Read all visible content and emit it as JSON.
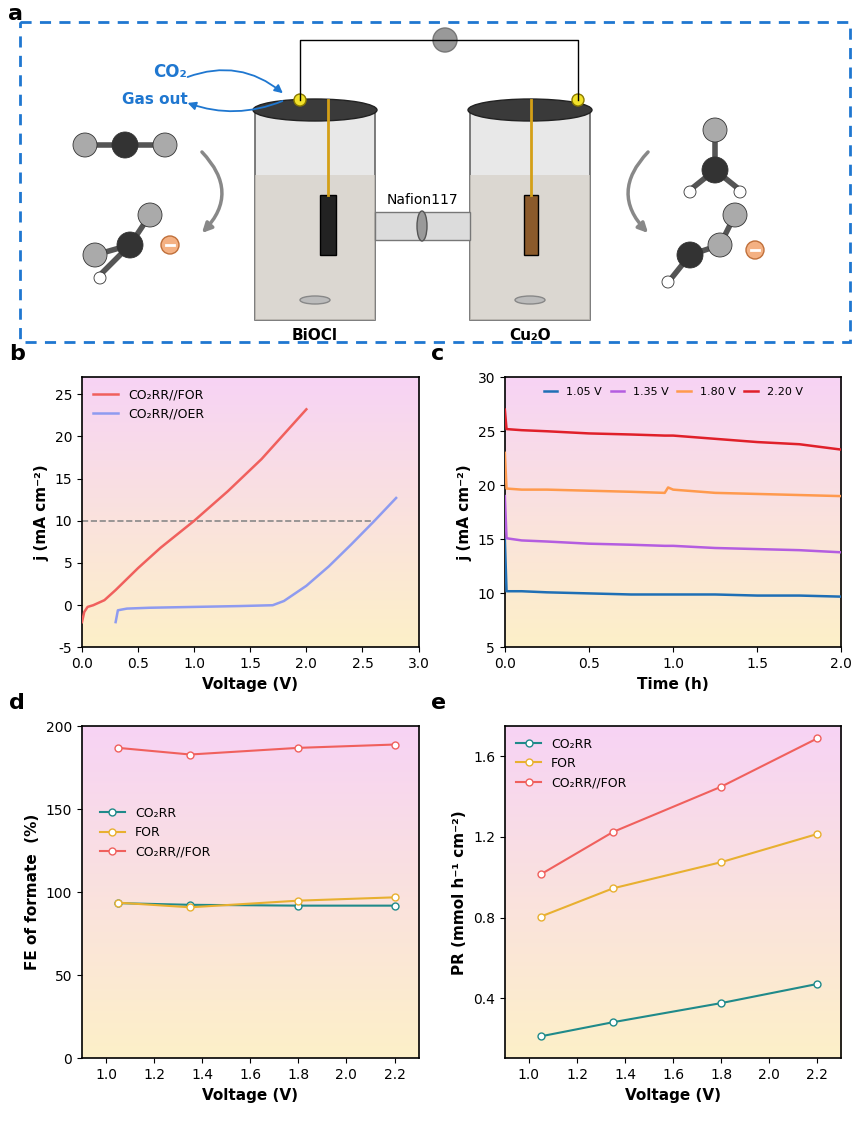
{
  "diagram": {
    "panel": "a",
    "gas_in": "CO₂",
    "gas_out": "Gas out",
    "membrane": "Nafion117",
    "cathode": "BiOCl",
    "anode": "Cu₂O"
  },
  "chart_data": [
    {
      "panel": "b",
      "type": "line",
      "x_label": "Voltage (V)",
      "y_label": "j (mA cm⁻²)",
      "xlim": [
        0,
        3
      ],
      "ylim": [
        -5,
        27
      ],
      "xticks": [
        {
          "value": 0,
          "label": "0.0"
        },
        {
          "value": 0.5,
          "label": "0.5"
        },
        {
          "value": 1,
          "label": "1.0"
        },
        {
          "value": 1.5,
          "label": "1.5"
        },
        {
          "value": 2,
          "label": "2.0"
        },
        {
          "value": 2.5,
          "label": "2.5"
        },
        {
          "value": 3,
          "label": "3.0"
        }
      ],
      "yticks": [
        -5,
        0,
        5,
        10,
        15,
        20,
        25
      ],
      "legend": "upper left",
      "reference_line": {
        "y": 10,
        "x": [
          0,
          2.6
        ],
        "color": "#888888",
        "line_style": "dashed"
      },
      "series": [
        {
          "name": "CO₂RR//FOR",
          "color": "#f0605d",
          "x": [
            0,
            0.02,
            0.05,
            0.1,
            0.2,
            0.3,
            0.5,
            0.7,
            1.0,
            1.3,
            1.6,
            2.0
          ],
          "values": [
            -2,
            -0.8,
            -0.2,
            0,
            0.6,
            1.8,
            4.4,
            6.8,
            10,
            13.5,
            17.3,
            23.2
          ]
        },
        {
          "name": "CO₂RR//OER",
          "color": "#8e9bf0",
          "x": [
            0.3,
            0.32,
            0.4,
            0.6,
            1.0,
            1.4,
            1.7,
            1.8,
            2.0,
            2.2,
            2.4,
            2.6,
            2.8
          ],
          "values": [
            -2,
            -0.6,
            -0.4,
            -0.3,
            -0.2,
            -0.1,
            0,
            0.5,
            2.3,
            4.6,
            7.2,
            9.9,
            12.7
          ]
        }
      ]
    },
    {
      "panel": "c",
      "type": "line",
      "x_label": "Time (h)",
      "y_label": "j (mA cm⁻²)",
      "xlim": [
        0,
        2
      ],
      "ylim": [
        5,
        30
      ],
      "xticks": [
        {
          "value": 0,
          "label": "0.0"
        },
        {
          "value": 0.5,
          "label": "0.5"
        },
        {
          "value": 1,
          "label": "1.0"
        },
        {
          "value": 1.5,
          "label": "1.5"
        },
        {
          "value": 2,
          "label": "2.0"
        }
      ],
      "yticks": [
        5,
        10,
        15,
        20,
        25,
        30
      ],
      "legend": "upper center",
      "x": [
        0,
        0.01,
        0.1,
        0.25,
        0.5,
        0.75,
        0.95,
        0.97,
        1.0,
        1.25,
        1.5,
        1.75,
        2.0
      ],
      "series": [
        {
          "name": "1.05 V",
          "color": "#1f6fb5",
          "values": [
            15,
            10.2,
            10.2,
            10.1,
            10.0,
            9.9,
            9.9,
            9.9,
            9.9,
            9.9,
            9.8,
            9.8,
            9.7
          ]
        },
        {
          "name": "1.35 V",
          "color": "#b45de0",
          "values": [
            19,
            15.1,
            14.9,
            14.8,
            14.6,
            14.5,
            14.4,
            14.4,
            14.4,
            14.2,
            14.1,
            14.0,
            13.8
          ]
        },
        {
          "name": "1.80 V",
          "color": "#ff9a4d",
          "values": [
            23,
            19.7,
            19.6,
            19.6,
            19.5,
            19.4,
            19.3,
            19.8,
            19.6,
            19.3,
            19.2,
            19.1,
            19.0
          ]
        },
        {
          "name": "2.20 V",
          "color": "#e0202a",
          "values": [
            27,
            25.2,
            25.1,
            25.0,
            24.8,
            24.7,
            24.6,
            24.6,
            24.6,
            24.3,
            24.0,
            23.8,
            23.3
          ]
        }
      ]
    },
    {
      "panel": "d",
      "type": "line",
      "marker": "o",
      "x_label": "Voltage (V)",
      "y_label": "FE of formate  (%)",
      "xlim": [
        0.9,
        2.3
      ],
      "ylim": [
        0,
        200
      ],
      "xticks": [
        {
          "value": 1,
          "label": "1.0"
        },
        {
          "value": 1.2,
          "label": "1.2"
        },
        {
          "value": 1.4,
          "label": "1.4"
        },
        {
          "value": 1.6,
          "label": "1.6"
        },
        {
          "value": 1.8,
          "label": "1.8"
        },
        {
          "value": 2,
          "label": "2.0"
        },
        {
          "value": 2.2,
          "label": "2.2"
        }
      ],
      "yticks": [
        0,
        50,
        100,
        150,
        200
      ],
      "legend": "center left",
      "x": [
        1.05,
        1.35,
        1.8,
        2.2
      ],
      "series": [
        {
          "name": "CO₂RR",
          "color": "#1f8a8a",
          "values": [
            93.5,
            92.5,
            92,
            92
          ]
        },
        {
          "name": "FOR",
          "color": "#e8b030",
          "values": [
            93.8,
            91,
            95,
            97
          ]
        },
        {
          "name": "CO₂RR//FOR",
          "color": "#f0605d",
          "values": [
            187,
            183,
            187,
            189
          ]
        }
      ]
    },
    {
      "panel": "e",
      "type": "line",
      "marker": "o",
      "x_label": "Voltage (V)",
      "y_label": "PR (mmol h⁻¹ cm⁻²)",
      "xlim": [
        0.9,
        2.3
      ],
      "ylim": [
        0.1,
        1.75
      ],
      "xticks": [
        {
          "value": 1,
          "label": "1.0"
        },
        {
          "value": 1.2,
          "label": "1.2"
        },
        {
          "value": 1.4,
          "label": "1.4"
        },
        {
          "value": 1.6,
          "label": "1.6"
        },
        {
          "value": 1.8,
          "label": "1.8"
        },
        {
          "value": 2,
          "label": "2.0"
        },
        {
          "value": 2.2,
          "label": "2.2"
        }
      ],
      "yticks": [
        0.4,
        0.8,
        1.2,
        1.6
      ],
      "legend": "upper left",
      "x": [
        1.05,
        1.35,
        1.8,
        2.2
      ],
      "series": [
        {
          "name": "CO₂RR",
          "color": "#1f8a8a",
          "values": [
            0.21,
            0.28,
            0.375,
            0.47
          ]
        },
        {
          "name": "FOR",
          "color": "#e8b030",
          "values": [
            0.805,
            0.945,
            1.075,
            1.215
          ]
        },
        {
          "name": "CO₂RR//FOR",
          "color": "#f0605d",
          "values": [
            1.015,
            1.225,
            1.45,
            1.69
          ]
        }
      ]
    }
  ]
}
